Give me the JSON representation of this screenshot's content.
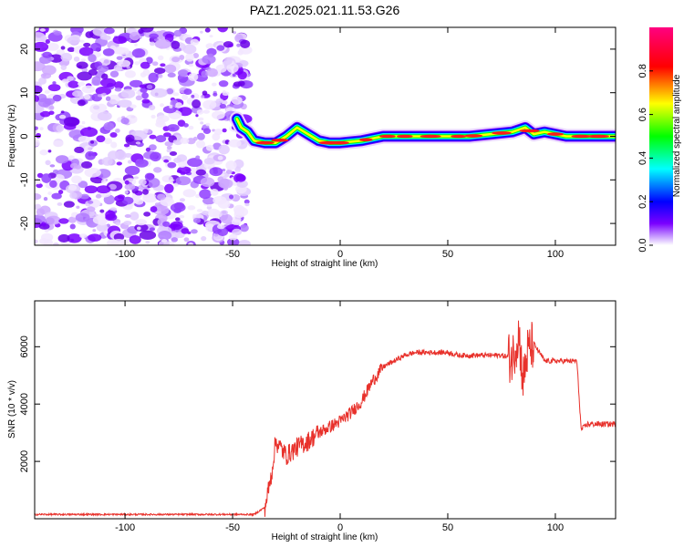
{
  "title": "PAZ1.2025.021.11.53.G26",
  "chart_data": [
    {
      "type": "heatmap",
      "xlabel": "Height of straight line (km)",
      "ylabel": "Frequency (Hz)",
      "xlim": [
        -142,
        128
      ],
      "ylim": [
        -25,
        25
      ],
      "x_ticks": [
        -100,
        -50,
        0,
        50,
        100
      ],
      "y_ticks": [
        -20,
        -10,
        0,
        10,
        20
      ],
      "colorbar": {
        "label": "Normalized spectral amplitude",
        "range": [
          0,
          1
        ],
        "ticks": [
          0.0,
          0.2,
          0.4,
          0.6,
          0.8
        ],
        "colormap": [
          "#ffffff",
          "#7a00ff",
          "#0000ff",
          "#00ffff",
          "#00ff00",
          "#ffff00",
          "#ff0000",
          "#ff0080"
        ]
      },
      "noise_region_x": [
        -142,
        -43
      ],
      "ridge_points": [
        {
          "x": -48,
          "y": 4
        },
        {
          "x": -46,
          "y": 2
        },
        {
          "x": -43,
          "y": 1
        },
        {
          "x": -40,
          "y": -1
        },
        {
          "x": -35,
          "y": -1.5
        },
        {
          "x": -30,
          "y": -1.5
        },
        {
          "x": -25,
          "y": 0
        },
        {
          "x": -20,
          "y": 2
        },
        {
          "x": -15,
          "y": 0.5
        },
        {
          "x": -10,
          "y": -1
        },
        {
          "x": -5,
          "y": -1.5
        },
        {
          "x": 0,
          "y": -1.5
        },
        {
          "x": 10,
          "y": -1
        },
        {
          "x": 20,
          "y": 0
        },
        {
          "x": 40,
          "y": 0
        },
        {
          "x": 60,
          "y": 0
        },
        {
          "x": 70,
          "y": 0.5
        },
        {
          "x": 80,
          "y": 1
        },
        {
          "x": 86,
          "y": 2
        },
        {
          "x": 90,
          "y": 0.5
        },
        {
          "x": 95,
          "y": 1
        },
        {
          "x": 105,
          "y": 0
        },
        {
          "x": 128,
          "y": 0
        }
      ]
    },
    {
      "type": "line",
      "xlabel": "Height of straight line (km)",
      "ylabel": "SNR (10 * v/v)",
      "xlim": [
        -142,
        128
      ],
      "ylim": [
        0,
        7600
      ],
      "x_ticks": [
        -100,
        -50,
        0,
        50,
        100
      ],
      "y_ticks": [
        2000,
        4000,
        6000
      ],
      "series": [
        {
          "color": "#e8312b",
          "x": [
            -142,
            -110,
            -80,
            -60,
            -40,
            -35,
            -32,
            -30,
            -25,
            -20,
            -15,
            -10,
            -5,
            0,
            5,
            10,
            15,
            20,
            25,
            30,
            35,
            40,
            45,
            50,
            55,
            60,
            65,
            70,
            75,
            80,
            83,
            85,
            87,
            90,
            95,
            100,
            105,
            110,
            112,
            115,
            120,
            128
          ],
          "y": [
            150,
            150,
            150,
            150,
            150,
            400,
            1500,
            2700,
            2200,
            2500,
            2700,
            3000,
            3200,
            3400,
            3700,
            4100,
            4800,
            5300,
            5500,
            5700,
            5800,
            5800,
            5800,
            5800,
            5700,
            5700,
            5700,
            5700,
            5700,
            5600,
            6500,
            4800,
            5800,
            6100,
            5500,
            5500,
            5500,
            5500,
            3100,
            3300,
            3300,
            3300
          ]
        }
      ]
    }
  ]
}
